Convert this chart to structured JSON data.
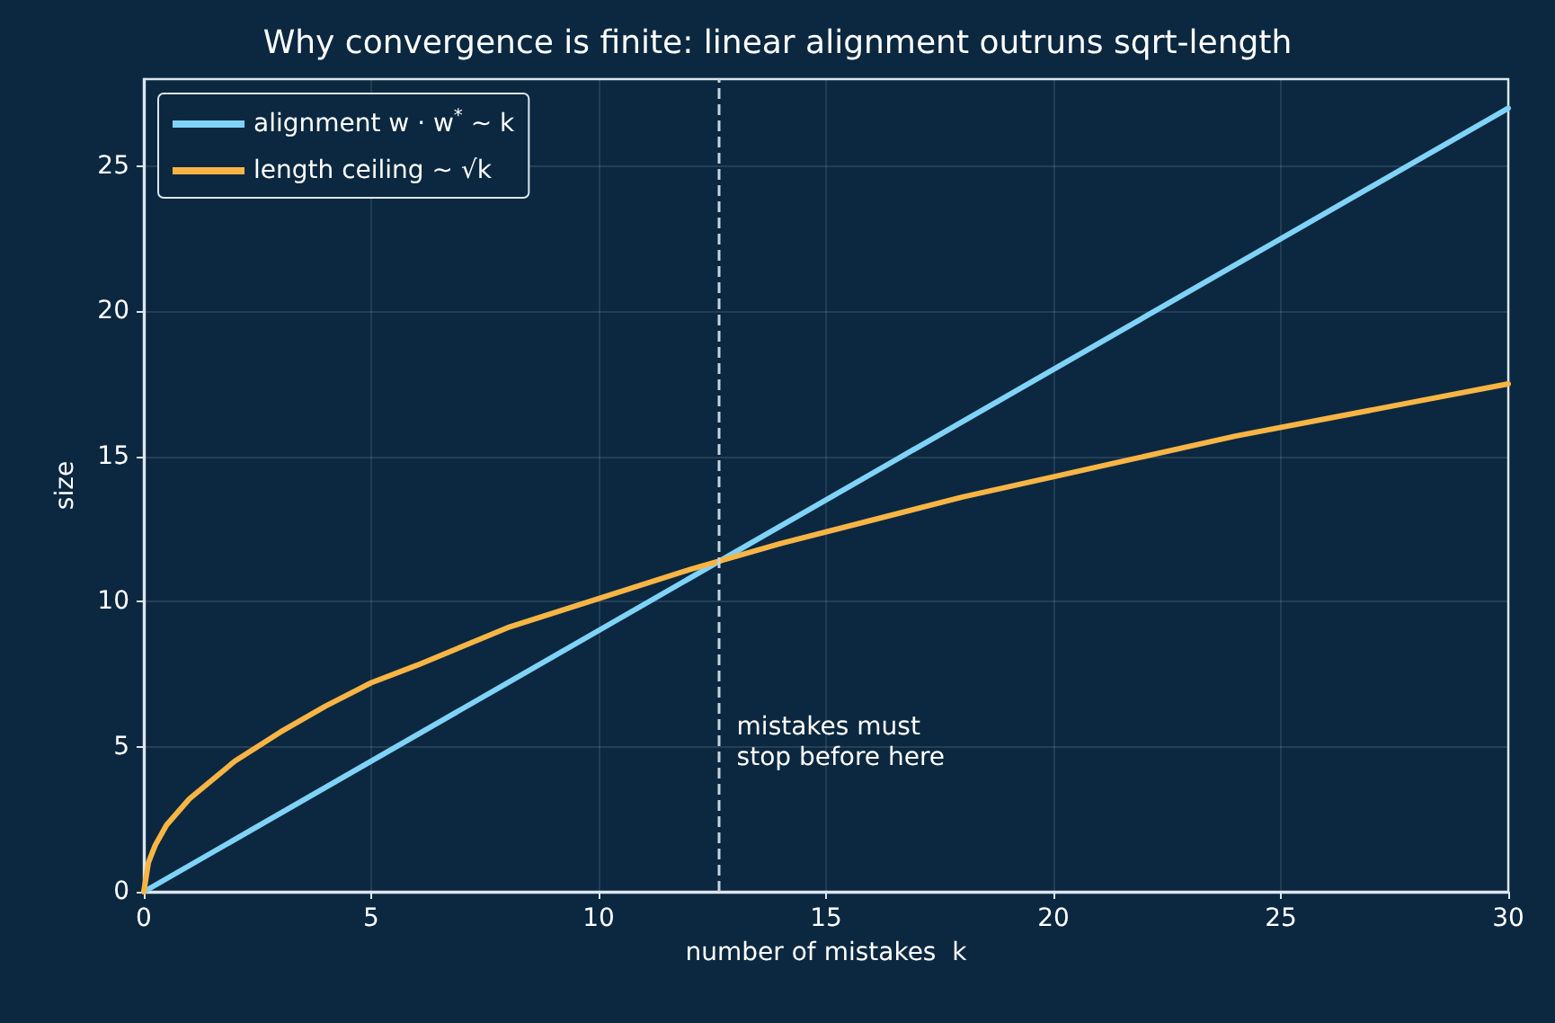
{
  "chart_data": {
    "type": "line",
    "title": "Why convergence is finite: linear alignment outruns sqrt-length",
    "xlabel": "number of mistakes  k",
    "ylabel": "size",
    "xlim": [
      0,
      30
    ],
    "xticks": [
      0,
      5,
      10,
      15,
      20,
      25,
      30
    ],
    "ylim": [
      0,
      28
    ],
    "yticks": [
      0,
      5,
      10,
      15,
      20,
      25
    ],
    "grid": true,
    "legend": "top left",
    "marker": "none",
    "line_style": "solid",
    "series": [
      {
        "name": "alignment w · w$^{*}$ ~ k",
        "color": "#7fd3f7",
        "x": [
          0,
          30
        ],
        "values": [
          0,
          27
        ]
      },
      {
        "name": "length ceiling ~ √k",
        "color": "#f9b544",
        "x": [
          0,
          0.1,
          0.25,
          0.5,
          1,
          2,
          3,
          4,
          5,
          6,
          8,
          10,
          12,
          14,
          16,
          18,
          20,
          22,
          24,
          26,
          28,
          30
        ],
        "values": [
          0,
          1.0,
          1.6,
          2.3,
          3.2,
          4.5,
          5.5,
          6.4,
          7.2,
          7.8,
          9.1,
          10.1,
          11.1,
          12.0,
          12.8,
          13.6,
          14.3,
          15.0,
          15.7,
          16.3,
          16.9,
          17.5
        ]
      }
    ],
    "ref_lines": [
      {
        "axis": "x",
        "value": 12.64,
        "color": "#c5d3df",
        "line_style": "dashed",
        "label": "mistakes must\nstop before here"
      }
    ]
  }
}
